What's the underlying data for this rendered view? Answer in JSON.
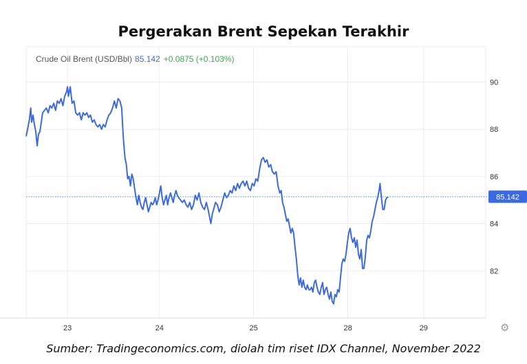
{
  "title": "Pergerakan Brent Sepekan Terakhir",
  "source": "Sumber: Tradingeconomics.com, diolah tim riset IDX Channel, November 2022",
  "colors": {
    "line": "#3b6ae0",
    "change": "#3aa84a",
    "grid": "#ececec",
    "axis_text": "#333333"
  },
  "icons": {
    "settings": "gear-icon"
  },
  "chart_data": {
    "type": "line",
    "title": "",
    "xlabel": "",
    "ylabel": "",
    "instrument": "Crude Oil Brent (USD/Bbl)",
    "last_value": "85.142",
    "change": "+0.0875 (+0.103%)",
    "ylim": [
      80,
      91.5
    ],
    "xlim": [
      0,
      100
    ],
    "grid": true,
    "current_price_line": 85.142,
    "x_ticks": [
      {
        "x": 9,
        "label": "23"
      },
      {
        "x": 29,
        "label": "24"
      },
      {
        "x": 49.5,
        "label": "25"
      },
      {
        "x": 70,
        "label": "28"
      },
      {
        "x": 86.5,
        "label": "29"
      }
    ],
    "y_ticks": [
      {
        "value": 90,
        "label": "90"
      },
      {
        "value": 88,
        "label": "88"
      },
      {
        "value": 86,
        "label": "86"
      },
      {
        "value": 84,
        "label": "84"
      },
      {
        "value": 82,
        "label": "82"
      }
    ],
    "series": [
      {
        "name": "Crude Oil Brent",
        "points": [
          [
            0,
            87.7
          ],
          [
            0.4,
            88.1
          ],
          [
            0.7,
            88.4
          ],
          [
            1.0,
            88.9
          ],
          [
            1.2,
            88.3
          ],
          [
            1.5,
            88.6
          ],
          [
            1.8,
            88.2
          ],
          [
            2.1,
            87.9
          ],
          [
            2.4,
            87.3
          ],
          [
            2.7,
            87.8
          ],
          [
            3.0,
            87.9
          ],
          [
            3.3,
            88.3
          ],
          [
            3.6,
            88.7
          ],
          [
            4.0,
            88.8
          ],
          [
            4.4,
            88.9
          ],
          [
            4.8,
            88.7
          ],
          [
            5.2,
            89.0
          ],
          [
            5.6,
            88.9
          ],
          [
            6.0,
            89.1
          ],
          [
            6.4,
            88.8
          ],
          [
            6.8,
            89.2
          ],
          [
            7.2,
            89.1
          ],
          [
            7.6,
            89.3
          ],
          [
            8.0,
            89.0
          ],
          [
            8.4,
            89.4
          ],
          [
            8.8,
            89.6
          ],
          [
            9.0,
            89.8
          ],
          [
            9.2,
            89.4
          ],
          [
            9.6,
            89.8
          ],
          [
            10.0,
            89.1
          ],
          [
            10.4,
            89.2
          ],
          [
            10.8,
            88.7
          ],
          [
            11.2,
            88.6
          ],
          [
            11.6,
            88.7
          ],
          [
            12.0,
            88.4
          ],
          [
            12.4,
            88.7
          ],
          [
            12.8,
            88.6
          ],
          [
            13.2,
            88.7
          ],
          [
            13.6,
            88.5
          ],
          [
            14.0,
            88.6
          ],
          [
            14.4,
            88.3
          ],
          [
            14.8,
            88.4
          ],
          [
            15.2,
            88.2
          ],
          [
            15.6,
            88.1
          ],
          [
            16.0,
            88.2
          ],
          [
            16.4,
            88.0
          ],
          [
            16.8,
            88.2
          ],
          [
            17.2,
            88.1
          ],
          [
            17.6,
            88.4
          ],
          [
            18.0,
            88.6
          ],
          [
            18.4,
            88.7
          ],
          [
            18.8,
            88.9
          ],
          [
            19.2,
            89.2
          ],
          [
            19.6,
            88.9
          ],
          [
            20.0,
            89.3
          ],
          [
            20.4,
            89.2
          ],
          [
            20.8,
            88.9
          ],
          [
            21.0,
            88.1
          ],
          [
            21.2,
            87.5
          ],
          [
            21.5,
            86.8
          ],
          [
            21.8,
            86.5
          ],
          [
            22.1,
            85.9
          ],
          [
            22.4,
            86.0
          ],
          [
            22.7,
            85.6
          ],
          [
            23.0,
            86.1
          ],
          [
            23.3,
            85.9
          ],
          [
            23.6,
            85.5
          ],
          [
            23.9,
            85.1
          ],
          [
            24.2,
            84.8
          ],
          [
            24.5,
            85.2
          ],
          [
            24.8,
            84.9
          ],
          [
            25.1,
            84.7
          ],
          [
            25.4,
            84.6
          ],
          [
            25.7,
            84.9
          ],
          [
            26.0,
            85.1
          ],
          [
            26.3,
            84.8
          ],
          [
            26.6,
            84.5
          ],
          [
            26.9,
            84.7
          ],
          [
            27.2,
            84.9
          ],
          [
            27.5,
            84.8
          ],
          [
            27.8,
            84.9
          ],
          [
            28.1,
            85.1
          ],
          [
            28.4,
            84.8
          ],
          [
            28.7,
            85.0
          ],
          [
            29.0,
            85.3
          ],
          [
            29.3,
            85.6
          ],
          [
            29.6,
            85.1
          ],
          [
            29.9,
            84.8
          ],
          [
            30.2,
            85.0
          ],
          [
            30.5,
            85.2
          ],
          [
            30.8,
            84.8
          ],
          [
            31.1,
            85.1
          ],
          [
            31.4,
            85.3
          ],
          [
            31.7,
            85.1
          ],
          [
            32.0,
            84.9
          ],
          [
            32.3,
            85.2
          ],
          [
            32.6,
            85.4
          ],
          [
            32.9,
            85.2
          ],
          [
            33.2,
            85.1
          ],
          [
            33.6,
            85.0
          ],
          [
            34.0,
            84.9
          ],
          [
            34.4,
            85.0
          ],
          [
            34.8,
            84.8
          ],
          [
            35.2,
            84.7
          ],
          [
            35.6,
            84.9
          ],
          [
            36.0,
            84.6
          ],
          [
            36.4,
            84.8
          ],
          [
            36.8,
            85.2
          ],
          [
            37.2,
            85.0
          ],
          [
            37.6,
            85.3
          ],
          [
            38.0,
            84.9
          ],
          [
            38.4,
            84.7
          ],
          [
            38.8,
            84.6
          ],
          [
            39.2,
            84.9
          ],
          [
            39.6,
            84.6
          ],
          [
            39.9,
            84.3
          ],
          [
            40.2,
            84.0
          ],
          [
            40.5,
            84.4
          ],
          [
            40.8,
            84.6
          ],
          [
            41.2,
            84.9
          ],
          [
            41.6,
            84.8
          ],
          [
            42.0,
            84.5
          ],
          [
            42.4,
            84.7
          ],
          [
            42.8,
            85.0
          ],
          [
            43.2,
            85.3
          ],
          [
            43.6,
            85.1
          ],
          [
            44.0,
            85.2
          ],
          [
            44.4,
            85.4
          ],
          [
            44.8,
            85.3
          ],
          [
            45.2,
            85.6
          ],
          [
            45.6,
            85.4
          ],
          [
            46.0,
            85.7
          ],
          [
            46.4,
            85.5
          ],
          [
            46.8,
            85.7
          ],
          [
            47.2,
            85.8
          ],
          [
            47.6,
            85.6
          ],
          [
            48.0,
            85.8
          ],
          [
            48.4,
            85.5
          ],
          [
            48.8,
            85.4
          ],
          [
            49.2,
            85.7
          ],
          [
            49.6,
            85.6
          ],
          [
            50.0,
            85.9
          ],
          [
            50.4,
            85.8
          ],
          [
            50.8,
            86.3
          ],
          [
            51.2,
            86.7
          ],
          [
            51.6,
            86.8
          ],
          [
            52.0,
            86.6
          ],
          [
            52.4,
            86.7
          ],
          [
            52.8,
            86.4
          ],
          [
            53.2,
            86.5
          ],
          [
            53.6,
            86.2
          ],
          [
            54.0,
            86.1
          ],
          [
            54.4,
            86.2
          ],
          [
            54.8,
            85.6
          ],
          [
            55.2,
            85.3
          ],
          [
            55.5,
            85.4
          ],
          [
            55.8,
            84.9
          ],
          [
            56.1,
            84.7
          ],
          [
            56.4,
            84.4
          ],
          [
            56.7,
            84.1
          ],
          [
            57.0,
            84.2
          ],
          [
            57.3,
            83.9
          ],
          [
            57.6,
            83.6
          ],
          [
            57.9,
            83.8
          ],
          [
            58.2,
            83.6
          ],
          [
            58.5,
            83.0
          ],
          [
            58.8,
            82.5
          ],
          [
            59.1,
            81.8
          ],
          [
            59.4,
            81.4
          ],
          [
            59.7,
            81.7
          ],
          [
            60.0,
            81.3
          ],
          [
            60.3,
            81.6
          ],
          [
            60.6,
            81.3
          ],
          [
            60.9,
            81.2
          ],
          [
            61.2,
            81.4
          ],
          [
            61.5,
            81.2
          ],
          [
            61.8,
            81.2
          ],
          [
            62.1,
            81.3
          ],
          [
            62.4,
            81.1
          ],
          [
            62.7,
            81.5
          ],
          [
            63.0,
            81.6
          ],
          [
            63.3,
            81.3
          ],
          [
            63.6,
            81.1
          ],
          [
            63.9,
            81.0
          ],
          [
            64.2,
            81.3
          ],
          [
            64.5,
            81.5
          ],
          [
            64.8,
            81.0
          ],
          [
            65.1,
            81.2
          ],
          [
            65.4,
            81.3
          ],
          [
            65.7,
            81.0
          ],
          [
            66.0,
            80.8
          ],
          [
            66.3,
            81.1
          ],
          [
            66.6,
            80.7
          ],
          [
            66.9,
            80.6
          ],
          [
            67.2,
            81.0
          ],
          [
            67.5,
            80.9
          ],
          [
            67.8,
            81.2
          ],
          [
            68.1,
            81.1
          ],
          [
            68.4,
            81.7
          ],
          [
            68.7,
            82.3
          ],
          [
            69.0,
            82.5
          ],
          [
            69.3,
            82.4
          ],
          [
            69.6,
            82.7
          ],
          [
            69.9,
            83.2
          ],
          [
            70.2,
            83.6
          ],
          [
            70.5,
            83.8
          ],
          [
            70.8,
            83.4
          ],
          [
            71.1,
            83.2
          ],
          [
            71.4,
            83.4
          ],
          [
            71.7,
            83.0
          ],
          [
            72.0,
            83.3
          ],
          [
            72.3,
            82.7
          ],
          [
            72.6,
            82.5
          ],
          [
            72.9,
            82.9
          ],
          [
            73.2,
            82.1
          ],
          [
            73.5,
            82.1
          ],
          [
            73.8,
            82.6
          ],
          [
            74.1,
            83.3
          ],
          [
            74.4,
            83.5
          ],
          [
            74.7,
            83.4
          ],
          [
            75.0,
            83.7
          ],
          [
            75.3,
            84.1
          ],
          [
            75.6,
            84.3
          ],
          [
            75.9,
            84.6
          ],
          [
            76.2,
            84.9
          ],
          [
            76.5,
            85.1
          ],
          [
            76.8,
            85.4
          ],
          [
            77.0,
            85.7
          ],
          [
            77.3,
            85.1
          ],
          [
            77.6,
            84.6
          ],
          [
            77.9,
            84.6
          ],
          [
            78.2,
            85.0
          ],
          [
            78.5,
            85.1
          ],
          [
            78.8,
            85.14
          ]
        ]
      }
    ]
  }
}
